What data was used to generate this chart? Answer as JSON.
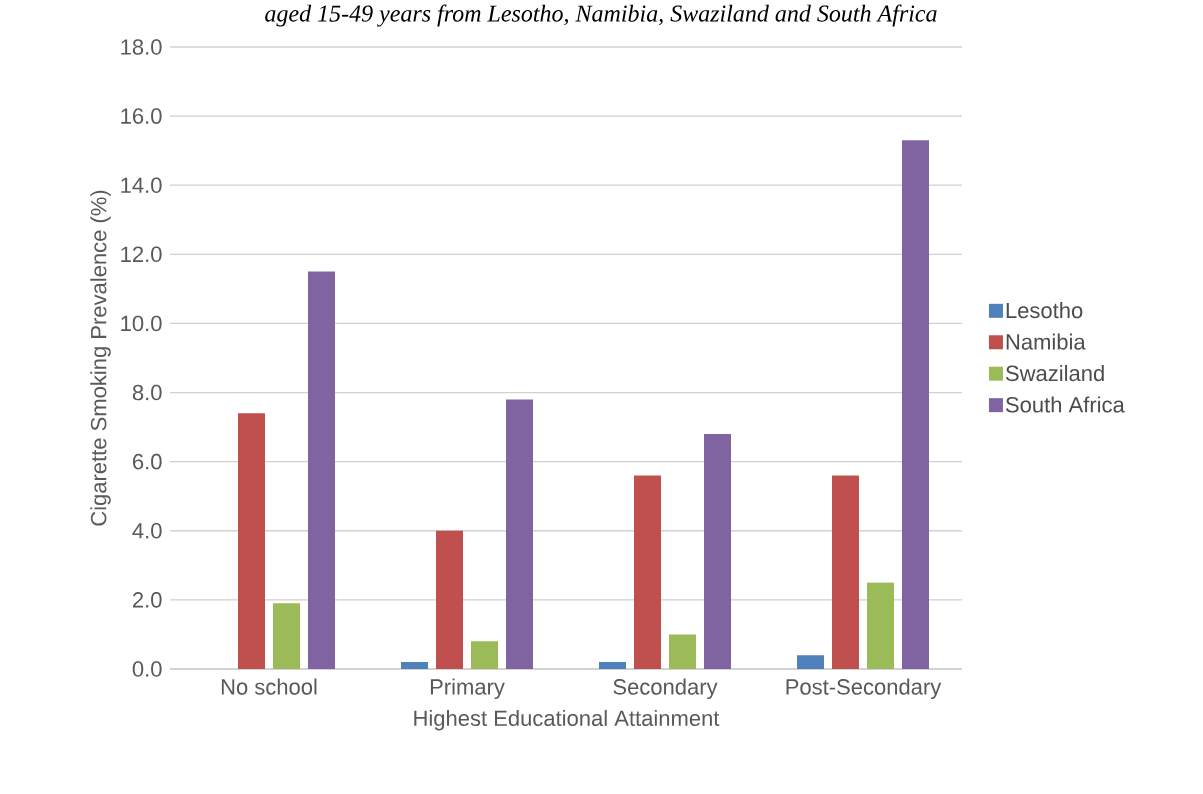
{
  "chart_data": {
    "type": "bar",
    "title": "aged 15-49 years from Lesotho, Namibia, Swaziland and South Africa",
    "xlabel": "Highest Educational Attainment",
    "ylabel": "Cigarette Smoking Prevalence (%)",
    "categories": [
      "No school",
      "Primary",
      "Secondary",
      "Post-Secondary"
    ],
    "series": [
      {
        "name": "Lesotho",
        "color": "#4f81bd",
        "values": [
          0,
          0.2,
          0.2,
          0.4
        ]
      },
      {
        "name": "Namibia",
        "color": "#c0504d",
        "values": [
          7.4,
          4.0,
          5.6,
          5.6
        ]
      },
      {
        "name": "Swaziland",
        "color": "#9bbb59",
        "values": [
          1.9,
          0.8,
          1.0,
          2.5
        ]
      },
      {
        "name": "South Africa",
        "color": "#8064a2",
        "values": [
          11.5,
          7.8,
          6.8,
          15.3
        ]
      }
    ],
    "ylim": [
      0,
      18
    ],
    "yticks": [
      {
        "value": 0,
        "label": "0.0"
      },
      {
        "value": 2,
        "label": "2.0"
      },
      {
        "value": 4,
        "label": "4.0"
      },
      {
        "value": 6,
        "label": "6.0"
      },
      {
        "value": 8,
        "label": "8.0"
      },
      {
        "value": 10,
        "label": "10.0"
      },
      {
        "value": 12,
        "label": "12.0"
      },
      {
        "value": 14,
        "label": "14.0"
      },
      {
        "value": 16,
        "label": "16.0"
      },
      {
        "value": 18,
        "label": "18.0"
      }
    ],
    "grid": "y",
    "legend": "right"
  }
}
